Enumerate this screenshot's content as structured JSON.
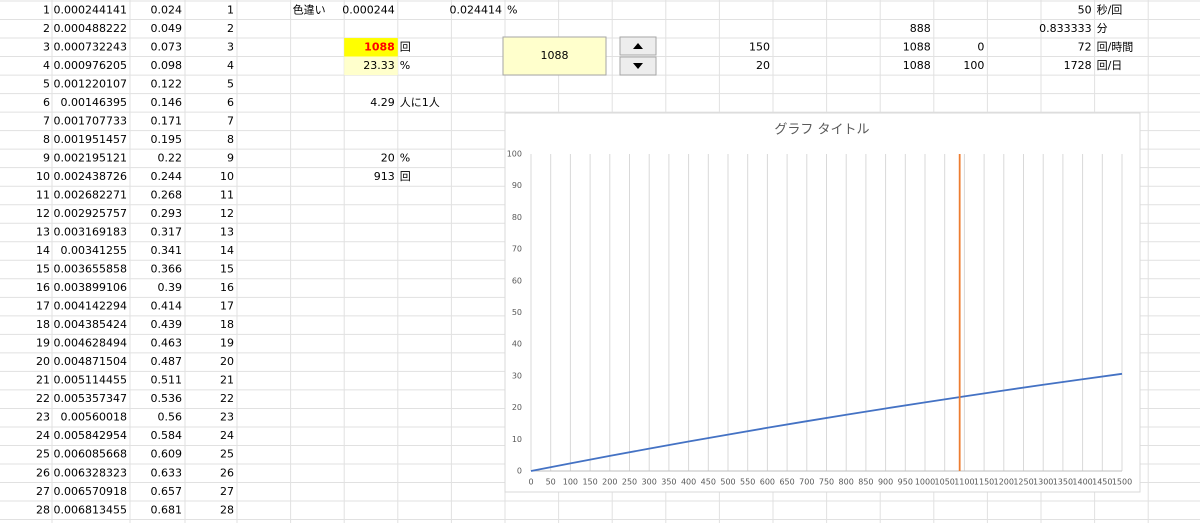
{
  "sheet": {
    "row_numbers": [
      1,
      2,
      3,
      4,
      5,
      6,
      7,
      8,
      9,
      10,
      11,
      12,
      13,
      14,
      15,
      16,
      17,
      18,
      19,
      20,
      21,
      22,
      23,
      24,
      25,
      26,
      27,
      28
    ],
    "col_b": [
      0.000244141,
      0.000488222,
      0.000732243,
      0.000976205,
      0.001220107,
      0.00146395,
      0.001707733,
      0.001951457,
      0.002195121,
      0.002438726,
      0.002682271,
      0.002925757,
      0.003169183,
      0.00341255,
      0.003655858,
      0.003899106,
      0.004142294,
      0.004385424,
      0.004628494,
      0.004871504,
      0.005114455,
      0.005357347,
      0.00560018,
      0.005842954,
      0.006085668,
      0.006328323,
      0.006570918,
      0.006813455
    ],
    "col_c": [
      0.024,
      0.049,
      0.073,
      0.098,
      0.122,
      0.146,
      0.171,
      0.195,
      0.22,
      0.244,
      0.268,
      0.293,
      0.317,
      0.341,
      0.366,
      0.39,
      0.414,
      0.439,
      0.463,
      0.487,
      0.511,
      0.536,
      0.56,
      0.584,
      0.609,
      0.633,
      0.657,
      0.681
    ],
    "col_d": [
      1,
      2,
      3,
      4,
      5,
      6,
      7,
      8,
      9,
      10,
      11,
      12,
      13,
      14,
      15,
      16,
      17,
      18,
      19,
      20,
      21,
      22,
      23,
      24,
      25,
      26,
      27,
      28
    ],
    "cells": {
      "F1": "色違い",
      "G1": 0.000244,
      "I1": 0.024414,
      "J1": "%",
      "T1": 50,
      "U1": "秒/回",
      "Q2": 888,
      "T2": 0.833333,
      "U2": "分",
      "G3": 1088,
      "H3": "回",
      "N3": 150,
      "Q3": 1088,
      "R3": 0,
      "T3": 72,
      "U3": "回/時間",
      "G4": 23.33,
      "H4": "%",
      "N4": 20,
      "Q4": 1088,
      "R4": 100,
      "T4": 1728,
      "U4": "回/日",
      "G6": 4.29,
      "H6": "人に1人",
      "G9": 20,
      "H9": "%",
      "G10": 913,
      "H10": "回"
    },
    "spinner": {
      "value": 1088
    }
  },
  "chart_data": {
    "type": "line",
    "title": "グラフ タイトル",
    "series": [
      {
        "color": "#4472c4",
        "x": [
          0,
          100,
          200,
          300,
          400,
          500,
          600,
          700,
          800,
          900,
          1000,
          1100,
          1200,
          1300,
          1400,
          1500
        ],
        "values": [
          0,
          2.41,
          4.77,
          7.06,
          9.31,
          11.49,
          13.63,
          15.71,
          17.74,
          19.73,
          21.66,
          23.55,
          25.4,
          27.2,
          28.95,
          30.66
        ]
      },
      {
        "color": "#ed7d31",
        "x": [
          1088,
          1088
        ],
        "values": [
          0,
          100
        ]
      }
    ],
    "xlim": [
      0,
      1500
    ],
    "ylim": [
      0,
      100
    ],
    "xticks": [
      0,
      50,
      100,
      150,
      200,
      250,
      300,
      350,
      400,
      450,
      500,
      550,
      600,
      650,
      700,
      750,
      800,
      850,
      900,
      950,
      1000,
      1050,
      1100,
      1150,
      1200,
      1250,
      1300,
      1350,
      1400,
      1450,
      1500
    ],
    "yticks": [
      0,
      10,
      20,
      30,
      40,
      50,
      60,
      70,
      80,
      90,
      100
    ],
    "x_grid": true
  }
}
